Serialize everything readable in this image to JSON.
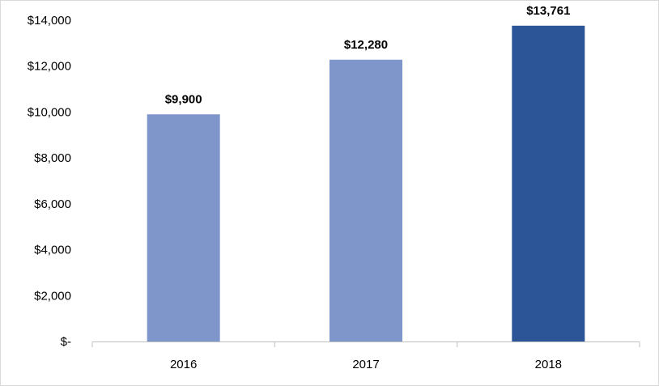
{
  "chart_data": {
    "type": "bar",
    "title": "",
    "xlabel": "",
    "ylabel": "",
    "categories": [
      "2016",
      "2017",
      "2018"
    ],
    "values": [
      9900,
      12280,
      13761
    ],
    "data_labels": [
      "$9,900",
      "$12,280",
      "$13,761"
    ],
    "ylim": [
      0,
      14000
    ],
    "yticks": [
      0,
      2000,
      4000,
      6000,
      8000,
      10000,
      12000,
      14000
    ],
    "ytick_labels": [
      "$-",
      "$2,000",
      "$4,000",
      "$6,000",
      "$8,000",
      "$10,000",
      "$12,000",
      "$14,000"
    ],
    "bar_colors": [
      "#7f96cb",
      "#7f96cb",
      "#2b5597"
    ],
    "grid": false,
    "legend": "none"
  }
}
